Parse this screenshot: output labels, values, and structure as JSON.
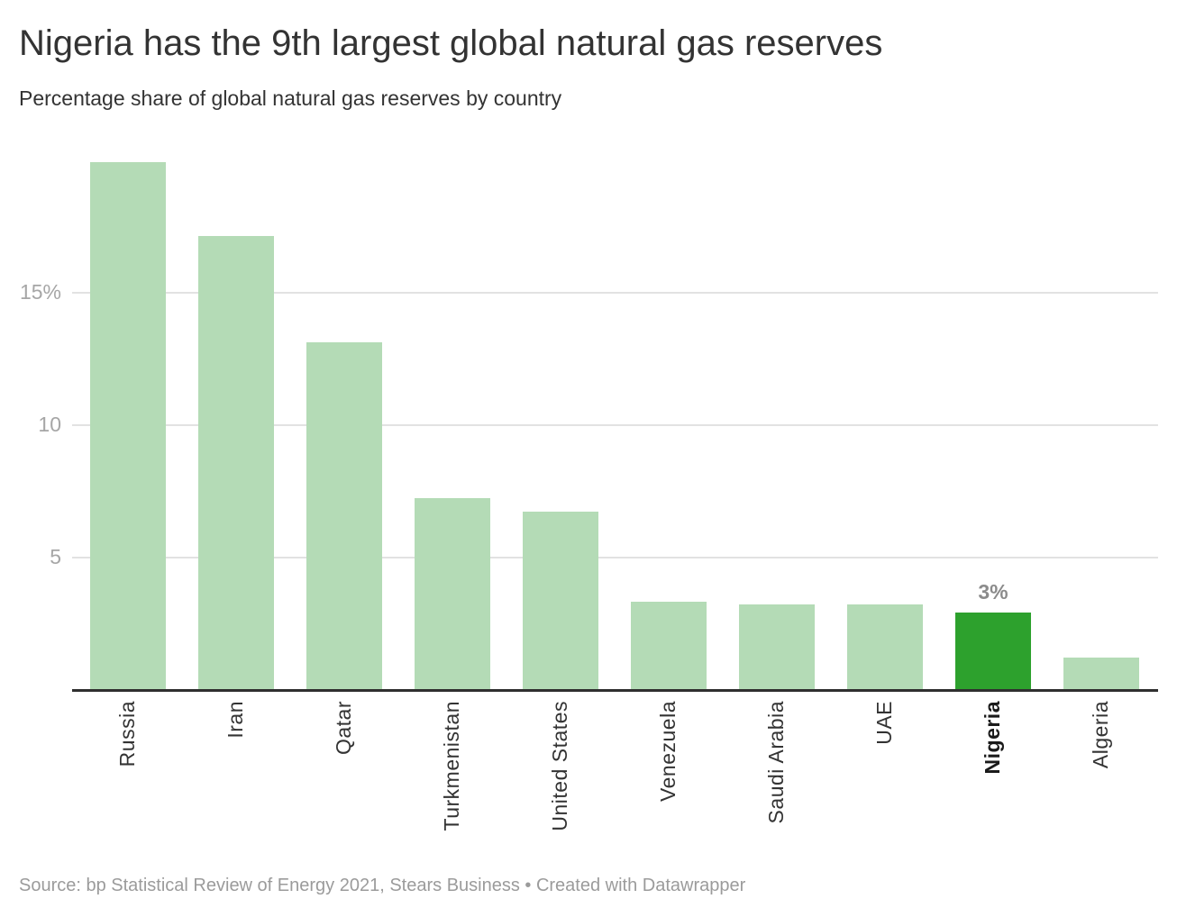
{
  "header": {
    "title": "Nigeria has the 9th largest global natural gas reserves",
    "subtitle": "Percentage share of global natural gas reserves by country"
  },
  "chart_data": {
    "type": "bar",
    "title": "Nigeria has the 9th largest global natural gas reserves",
    "subtitle": "Percentage share of global natural gas reserves by country",
    "xlabel": "",
    "ylabel": "",
    "unit": "%",
    "categories": [
      "Russia",
      "Iran",
      "Qatar",
      "Turkmenistan",
      "United States",
      "Venezuela",
      "Saudi Arabia",
      "UAE",
      "Nigeria",
      "Algeria"
    ],
    "values": [
      19.9,
      17.1,
      13.1,
      7.2,
      6.7,
      3.3,
      3.2,
      3.2,
      2.9,
      1.2
    ],
    "ylim": [
      0,
      20.6
    ],
    "yticks": [
      {
        "value": 5,
        "label": "5"
      },
      {
        "value": 10,
        "label": "10"
      },
      {
        "value": 15,
        "label": "15%"
      }
    ],
    "grid": "horizontal",
    "legend": "none",
    "highlight": {
      "category": "Nigeria",
      "value_label": "3%"
    },
    "colors": {
      "bar": "#b4dbb6",
      "highlight_bar": "#2da12d",
      "axis_line": "#2f2f2f",
      "gridline": "#e2e2e2",
      "tick_label": "#a6a6a6",
      "value_label": "#8b8b8b"
    }
  },
  "footer": {
    "source": "Source: bp Statistical Review of Energy 2021, Stears Business • Created with Datawrapper"
  }
}
